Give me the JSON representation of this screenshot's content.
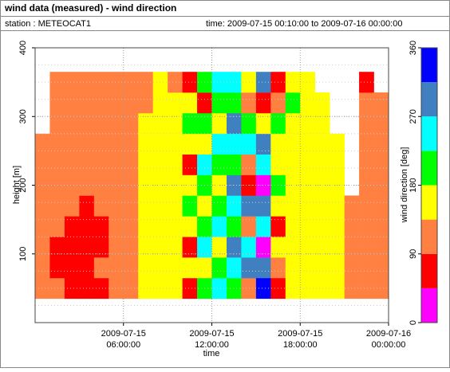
{
  "chart_data": {
    "type": "heatmap",
    "title": "wind data (measured) - wind direction",
    "station": "station : METEOCAT1",
    "period": "time: 2009-07-15 00:10:00 to 2009-07-16 00:00:00",
    "xlabel": "time",
    "ylabel": "height [m]",
    "xlim": [
      "2009-07-15 00:00:00",
      "2009-07-16 00:00:00"
    ],
    "xticks": [
      "2009-07-15 06:00:00",
      "2009-07-15 12:00:00",
      "2009-07-15 18:00:00",
      "2009-07-16 00:00:00"
    ],
    "ylim": [
      0,
      400
    ],
    "yticks": [
      100,
      200,
      300,
      400
    ],
    "grid": true,
    "x": [
      "2009-07-15 00:30:00",
      "2009-07-15 01:30:00",
      "2009-07-15 02:30:00",
      "2009-07-15 03:30:00",
      "2009-07-15 04:30:00",
      "2009-07-15 05:30:00",
      "2009-07-15 06:30:00",
      "2009-07-15 07:30:00",
      "2009-07-15 08:30:00",
      "2009-07-15 09:30:00",
      "2009-07-15 10:30:00",
      "2009-07-15 11:30:00",
      "2009-07-15 12:30:00",
      "2009-07-15 13:30:00",
      "2009-07-15 14:30:00",
      "2009-07-15 15:30:00",
      "2009-07-15 16:30:00",
      "2009-07-15 17:30:00",
      "2009-07-15 18:30:00",
      "2009-07-15 19:30:00",
      "2009-07-15 20:30:00",
      "2009-07-15 21:30:00",
      "2009-07-15 22:30:00",
      "2009-07-15 23:30:00"
    ],
    "y": [
      50,
      80,
      110,
      140,
      170,
      200,
      230,
      260,
      290,
      320,
      350
    ],
    "z": [
      [
        112,
        112,
        112,
        112,
        112,
        112,
        112,
        112,
        null,
        null,
        null
      ],
      [
        112,
        70,
        70,
        112,
        112,
        112,
        112,
        112,
        112,
        112,
        112
      ],
      [
        70,
        70,
        70,
        70,
        112,
        112,
        112,
        112,
        112,
        112,
        112
      ],
      [
        70,
        70,
        70,
        70,
        70,
        112,
        112,
        112,
        112,
        112,
        112
      ],
      [
        70,
        112,
        70,
        70,
        112,
        112,
        112,
        112,
        112,
        112,
        112
      ],
      [
        112,
        112,
        112,
        112,
        112,
        112,
        112,
        112,
        112,
        112,
        112
      ],
      [
        112,
        112,
        112,
        112,
        112,
        112,
        112,
        112,
        112,
        112,
        112
      ],
      [
        157,
        157,
        157,
        157,
        157,
        157,
        157,
        157,
        157,
        112,
        112
      ],
      [
        157,
        157,
        157,
        157,
        157,
        157,
        157,
        157,
        157,
        157,
        157
      ],
      [
        157,
        157,
        157,
        157,
        157,
        157,
        157,
        157,
        157,
        157,
        112
      ],
      [
        70,
        157,
        70,
        157,
        200,
        157,
        70,
        157,
        200,
        157,
        70
      ],
      [
        200,
        157,
        240,
        200,
        157,
        200,
        240,
        157,
        200,
        70,
        200
      ],
      [
        240,
        200,
        157,
        240,
        200,
        157,
        200,
        240,
        157,
        200,
        240
      ],
      [
        200,
        240,
        290,
        200,
        240,
        290,
        200,
        240,
        290,
        200,
        240
      ],
      [
        112,
        290,
        240,
        112,
        290,
        70,
        112,
        240,
        200,
        112,
        157
      ],
      [
        340,
        290,
        20,
        240,
        290,
        20,
        240,
        290,
        157,
        70,
        290
      ],
      [
        70,
        112,
        157,
        70,
        157,
        200,
        157,
        157,
        200,
        112,
        70
      ],
      [
        157,
        157,
        157,
        157,
        157,
        157,
        157,
        157,
        157,
        200,
        157
      ],
      [
        157,
        157,
        157,
        157,
        157,
        157,
        157,
        157,
        157,
        157,
        157
      ],
      [
        157,
        157,
        157,
        157,
        157,
        157,
        157,
        157,
        157,
        157,
        null
      ],
      [
        157,
        157,
        157,
        157,
        157,
        157,
        157,
        157,
        null,
        null,
        null
      ],
      [
        112,
        112,
        112,
        112,
        112,
        null,
        null,
        null,
        null,
        null,
        null
      ],
      [
        112,
        112,
        112,
        112,
        112,
        112,
        112,
        112,
        112,
        112,
        70
      ],
      [
        112,
        112,
        112,
        112,
        112,
        112,
        112,
        112,
        112,
        112,
        null
      ]
    ],
    "colorbar": {
      "label": "wind direction [deg]",
      "lim": [
        0,
        360
      ],
      "ticks": [
        0,
        90,
        180,
        270,
        360
      ],
      "colors": [
        "#ff00ff",
        "#ff0000",
        "#ff8040",
        "#ffff00",
        "#00ff00",
        "#00ffff",
        "#4080c0",
        "#0000ff"
      ]
    }
  }
}
